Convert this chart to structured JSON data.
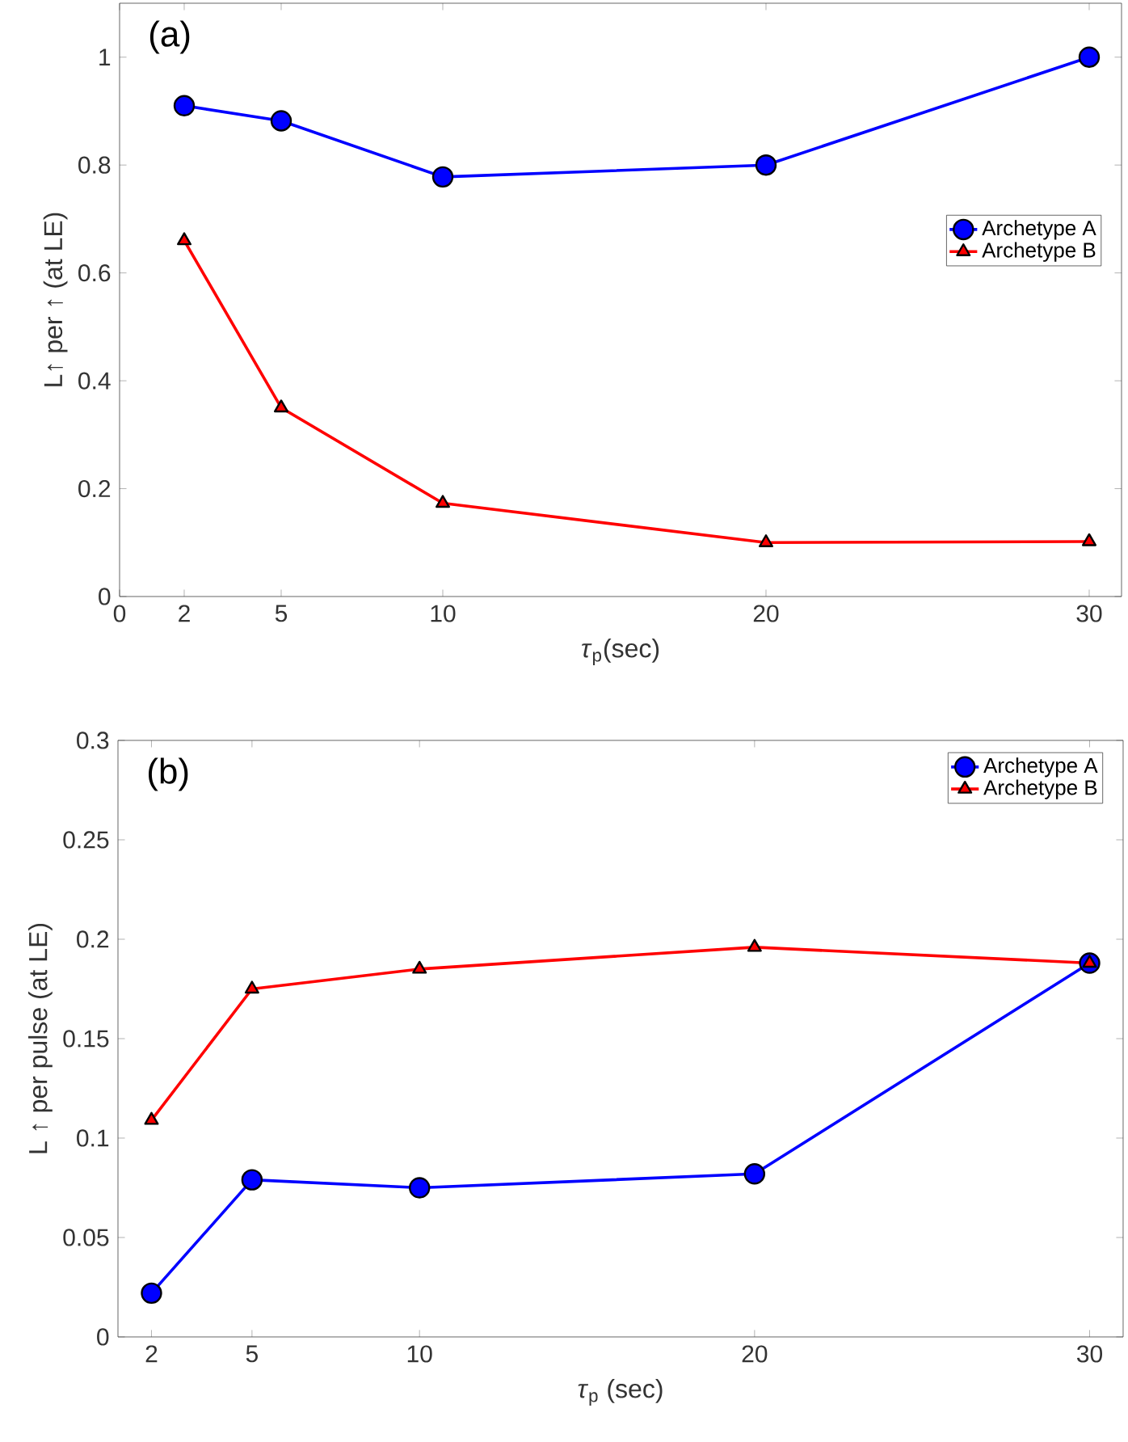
{
  "chart_data": [
    {
      "type": "line",
      "annotations": [
        "(a)"
      ],
      "xlabel": "*τ*$_{p}$(sec)",
      "ylabel": "L↑ per ↑ (at LE)",
      "x": [
        2,
        5,
        10,
        20,
        30
      ],
      "xlim": [
        0,
        31
      ],
      "xticks": [
        0,
        2,
        5,
        10,
        20,
        30
      ],
      "ylim": [
        0,
        1.1
      ],
      "yticks": [
        0,
        0.2,
        0.4,
        0.6,
        0.8,
        1
      ],
      "legend": "right",
      "grid": false,
      "line_style": "solid",
      "series": [
        {
          "name": "Archetype A",
          "color": "#0000ff",
          "marker": "circle",
          "values": [
            0.91,
            0.882,
            0.778,
            0.8,
            1.0
          ]
        },
        {
          "name": "Archetype B",
          "color": "#ff0000",
          "marker": "triangle",
          "values": [
            0.66,
            0.35,
            0.173,
            0.1,
            0.102
          ]
        }
      ]
    },
    {
      "type": "line",
      "annotations": [
        "(b)"
      ],
      "xlabel": "*τ*$_{p}$ (sec)",
      "ylabel": "L ↑ per pulse (at LE)",
      "x": [
        2,
        5,
        10,
        20,
        30
      ],
      "xlim": [
        1,
        31
      ],
      "xticks": [
        2,
        5,
        10,
        20,
        30
      ],
      "ylim": [
        0,
        0.3
      ],
      "yticks": [
        0,
        0.05,
        0.1,
        0.15,
        0.2,
        0.25,
        0.3
      ],
      "legend": "top right",
      "grid": false,
      "line_style": "solid",
      "series": [
        {
          "name": "Archetype A",
          "color": "#0000ff",
          "marker": "circle",
          "values": [
            0.022,
            0.079,
            0.075,
            0.082,
            0.188
          ]
        },
        {
          "name": "Archetype B",
          "color": "#ff0000",
          "marker": "triangle",
          "values": [
            0.109,
            0.175,
            0.185,
            0.196,
            0.188
          ]
        }
      ]
    }
  ]
}
